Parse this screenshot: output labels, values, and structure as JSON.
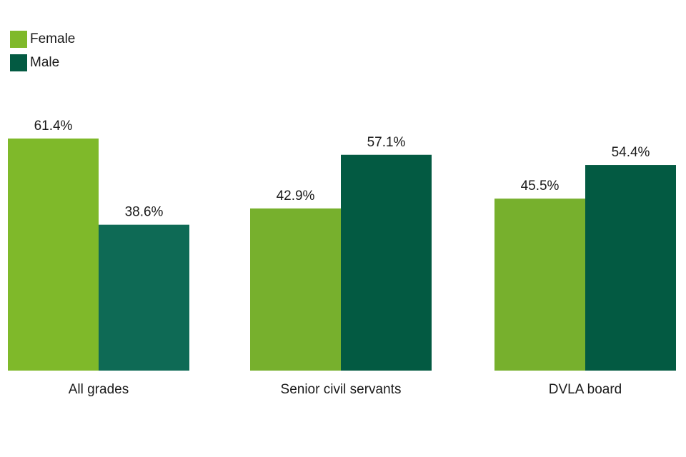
{
  "chart_data": {
    "type": "bar",
    "title": "",
    "xlabel": "",
    "ylabel": "",
    "ylim": [
      0,
      61.4
    ],
    "grid": false,
    "legend_position": "top-left",
    "categories": [
      "All grades",
      "Senior civil servants",
      "DVLA board"
    ],
    "series": [
      {
        "name": "Female",
        "values": [
          61.4,
          42.9,
          45.5
        ],
        "labels": [
          "61.4%",
          "42.9%",
          "45.5%"
        ],
        "colors": [
          "#7fb92a",
          "#77b02d",
          "#77b02d"
        ]
      },
      {
        "name": "Male",
        "values": [
          38.6,
          57.1,
          54.4
        ],
        "labels": [
          "38.6%",
          "57.1%",
          "54.4%"
        ],
        "colors": [
          "#0e6a55",
          "#035a42",
          "#035a42"
        ]
      }
    ],
    "legend": [
      {
        "label": "Female",
        "color": "#7fb92a"
      },
      {
        "label": "Male",
        "color": "#035a42"
      }
    ]
  }
}
